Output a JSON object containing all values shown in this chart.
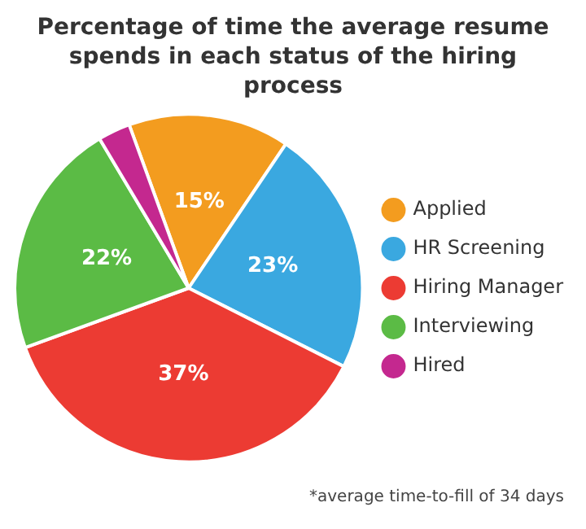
{
  "chart_data": {
    "type": "pie",
    "title": "Percentage of time the average resume spends in each status of the hiring process",
    "categories": [
      "Applied",
      "HR Screening",
      "Hiring Manager",
      "Interviewing",
      "Hired"
    ],
    "values": [
      15,
      23,
      37,
      22,
      3
    ],
    "colors": [
      "#f39c1f",
      "#3aa8e0",
      "#ec3b33",
      "#5bbb45",
      "#c4288f"
    ],
    "value_labels": [
      "15%",
      "23%",
      "37%",
      "22%",
      null
    ],
    "legend": "right",
    "annotations": [
      "*average time-to-fill of 34 days"
    ]
  }
}
